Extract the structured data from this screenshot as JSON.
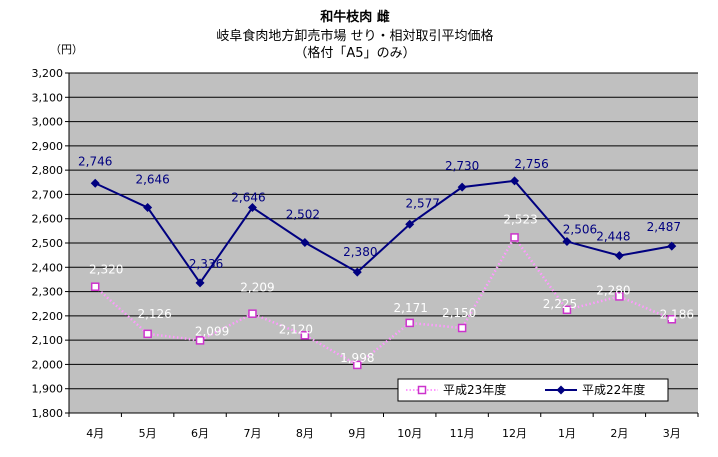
{
  "header": {
    "title": "和牛枝肉 雌",
    "subtitle1": "岐阜食肉地方卸売市場 せり・相対取引平均価格",
    "subtitle2": "（格付「A5」のみ）"
  },
  "chart_data": {
    "type": "line",
    "title": "和牛枝肉 雌",
    "ylabel": "（円）",
    "xlabel": "",
    "ylim": [
      1800,
      3200
    ],
    "ytick_step": 100,
    "yticks": [
      "1,800",
      "1,900",
      "2,000",
      "2,100",
      "2,200",
      "2,300",
      "2,400",
      "2,500",
      "2,600",
      "2,700",
      "2,800",
      "2,900",
      "3,000",
      "3,100",
      "3,200"
    ],
    "categories": [
      "4月",
      "5月",
      "6月",
      "7月",
      "8月",
      "9月",
      "10月",
      "11月",
      "12月",
      "1月",
      "2月",
      "3月"
    ],
    "grid": true,
    "legend_position": "bottom-right",
    "series": [
      {
        "name": "平成23年度",
        "values": [
          2320,
          2126,
          2099,
          2209,
          2120,
          1998,
          2171,
          2150,
          2523,
          2225,
          2280,
          2186
        ],
        "labels": [
          "2,320",
          "2,126",
          "2,099",
          "2,209",
          "2,120",
          "1,998",
          "2,171",
          "2,150",
          "2,523",
          "2,225",
          "2,280",
          "2,186"
        ],
        "color": "#ff99ff",
        "marker_fill": "#ffffff",
        "marker_stroke": "#cc33cc",
        "label_color": "#ffffff",
        "line_style": "dotted",
        "marker": "square"
      },
      {
        "name": "平成22年度",
        "values": [
          2746,
          2646,
          2336,
          2646,
          2502,
          2380,
          2577,
          2730,
          2756,
          2506,
          2448,
          2487
        ],
        "labels": [
          "2,746",
          "2,646",
          "2,336",
          "2,646",
          "2,502",
          "2,380",
          "2,577",
          "2,730",
          "2,756",
          "2,506",
          "2,448",
          "2,487"
        ],
        "color": "#000080",
        "label_color": "#000080",
        "line_style": "solid",
        "marker": "diamond"
      }
    ]
  },
  "colors": {
    "plot_bg": "#c0c0c0",
    "grid": "#000000"
  }
}
